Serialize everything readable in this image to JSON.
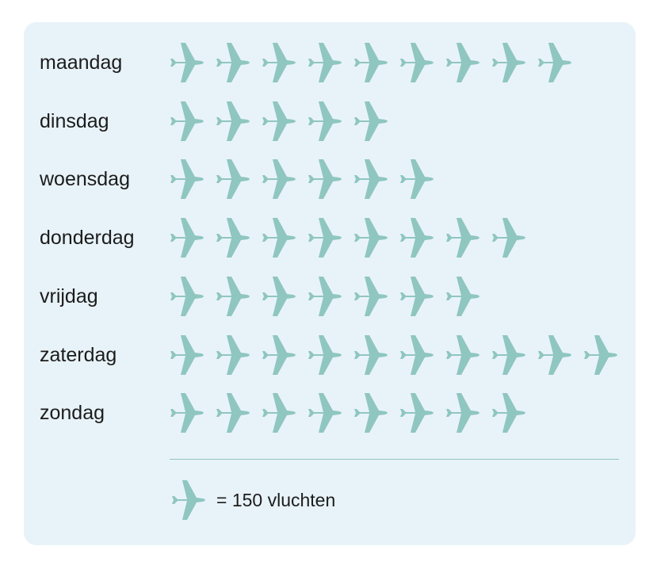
{
  "chart_data": {
    "type": "pictogram",
    "categories": [
      "maandag",
      "dinsdag",
      "woensdag",
      "donderdag",
      "vrijdag",
      "zaterdag",
      "zondag"
    ],
    "values": [
      1350,
      750,
      900,
      1200,
      1050,
      1500,
      1200
    ],
    "unit_per_icon": 150,
    "icon": "airplane-icon",
    "icon_color": "#8fc6c0",
    "legend": {
      "label": "= 150 vluchten"
    }
  },
  "colors": {
    "panel_background": "#e8f3f9",
    "icon": "#8fc6c0",
    "divider": "#8fc6c0",
    "text": "#1c1c1c"
  }
}
